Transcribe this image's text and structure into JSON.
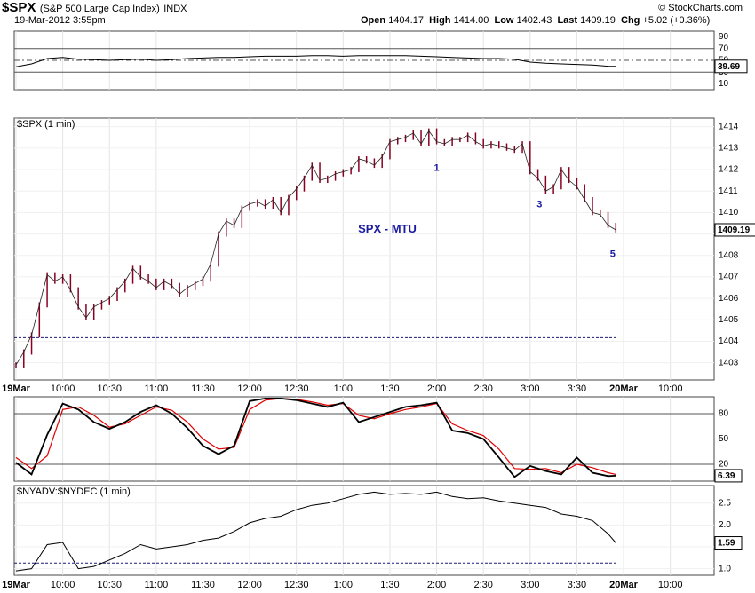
{
  "header": {
    "symbol": "$SPX",
    "description": "(S&P 500 Large Cap Index)",
    "exchange": "INDX",
    "timestamp": "19-Mar-2012 3:55pm",
    "copyright": "© StockCharts.com",
    "open_label": "Open",
    "open_value": "1404.17",
    "high_label": "High",
    "high_value": "1414.00",
    "low_label": "Low",
    "low_value": "1402.43",
    "last_label": "Last",
    "last_value": "1409.19",
    "chg_label": "Chg",
    "chg_value": "+5.02 (+0.36%)"
  },
  "colors": {
    "price_bar": "#880022",
    "wave_label": "#1a1aa0",
    "fast_line": "#000000",
    "slow_line": "#e00000",
    "grid": "#aaaaaa"
  },
  "chart_data": [
    {
      "type": "line",
      "panel": "top indicator",
      "ylim": [
        0,
        100
      ],
      "y_ticks": [
        "90",
        "70",
        "50",
        "30",
        "10"
      ],
      "reference_lines": [
        70,
        50,
        30
      ],
      "last_value_label": "39.69",
      "series": [
        {
          "x": [
            "09:30",
            "09:40",
            "09:50",
            "10:00",
            "10:10",
            "10:20",
            "10:30",
            "10:40",
            "10:50",
            "11:00",
            "11:10",
            "11:20",
            "11:30",
            "11:40",
            "11:50",
            "12:00",
            "12:10",
            "12:20",
            "12:30",
            "12:40",
            "12:50",
            "13:00",
            "13:10",
            "13:20",
            "13:30",
            "13:40",
            "13:50",
            "14:00",
            "14:10",
            "14:20",
            "14:30",
            "14:40",
            "14:50",
            "15:00",
            "15:10",
            "15:20",
            "15:30",
            "15:40",
            "15:50",
            "15:55"
          ],
          "values": [
            39,
            44,
            53,
            55,
            52,
            51,
            50,
            51,
            52,
            50,
            51,
            53,
            54,
            55,
            55,
            56,
            57,
            57,
            57,
            58,
            58,
            57,
            58,
            58,
            58,
            58,
            57,
            56,
            55,
            54,
            53,
            53,
            52,
            47,
            45,
            44,
            43,
            42,
            40,
            39.69
          ]
        }
      ]
    },
    {
      "type": "bar",
      "panel": "price",
      "label": "$SPX (1 min)",
      "annotation": "SPX - MTU",
      "ylim": [
        1402.2,
        1414.4
      ],
      "y_ticks": [
        "1414",
        "1413",
        "1412",
        "1411",
        "1410",
        "1409",
        "1408",
        "1407",
        "1406",
        "1405",
        "1404",
        "1403"
      ],
      "reference_line": 1404.17,
      "last_value_label": "1409.19",
      "x_tick_labels": [
        "19Mar",
        "10:00",
        "10:30",
        "11:00",
        "11:30",
        "12:00",
        "12:30",
        "1:00",
        "1:30",
        "2:00",
        "2:30",
        "3:00",
        "3:30",
        "20Mar",
        "10:00"
      ],
      "wave_labels": [
        {
          "text": "1",
          "x": "14:00",
          "y": 1412.1
        },
        {
          "text": "3",
          "x": "15:06",
          "y": 1410.4
        },
        {
          "text": "5",
          "x": "15:53",
          "y": 1408.1
        }
      ],
      "x": [
        "09:30",
        "09:35",
        "09:40",
        "09:45",
        "09:50",
        "09:55",
        "10:00",
        "10:05",
        "10:10",
        "10:15",
        "10:20",
        "10:25",
        "10:30",
        "10:35",
        "10:40",
        "10:45",
        "10:50",
        "10:55",
        "11:00",
        "11:05",
        "11:10",
        "11:15",
        "11:20",
        "11:25",
        "11:30",
        "11:35",
        "11:40",
        "11:45",
        "11:50",
        "11:55",
        "12:00",
        "12:05",
        "12:10",
        "12:15",
        "12:20",
        "12:25",
        "12:30",
        "12:35",
        "12:40",
        "12:45",
        "12:50",
        "12:55",
        "13:00",
        "13:05",
        "13:10",
        "13:15",
        "13:20",
        "13:25",
        "13:30",
        "13:35",
        "13:40",
        "13:45",
        "13:50",
        "13:55",
        "14:00",
        "14:05",
        "14:10",
        "14:15",
        "14:20",
        "14:25",
        "14:30",
        "14:35",
        "14:40",
        "14:45",
        "14:50",
        "14:55",
        "15:00",
        "15:05",
        "15:10",
        "15:15",
        "15:20",
        "15:25",
        "15:30",
        "15:35",
        "15:40",
        "15:45",
        "15:50",
        "15:55"
      ],
      "values": [
        1402.9,
        1403.5,
        1404.3,
        1405.7,
        1407.1,
        1406.8,
        1407.0,
        1406.4,
        1405.6,
        1405.1,
        1405.6,
        1405.8,
        1406.0,
        1406.4,
        1406.8,
        1407.4,
        1407.0,
        1406.8,
        1406.5,
        1406.8,
        1406.6,
        1406.2,
        1406.5,
        1406.7,
        1406.9,
        1407.6,
        1409.0,
        1409.6,
        1409.4,
        1410.2,
        1410.4,
        1410.5,
        1410.3,
        1410.6,
        1410.0,
        1410.7,
        1411.1,
        1411.6,
        1412.2,
        1411.5,
        1411.6,
        1411.8,
        1411.9,
        1412.0,
        1412.5,
        1412.4,
        1412.2,
        1412.6,
        1413.3,
        1413.4,
        1413.5,
        1413.7,
        1413.2,
        1413.8,
        1413.3,
        1413.2,
        1413.4,
        1413.4,
        1413.6,
        1413.3,
        1413.1,
        1413.2,
        1413.1,
        1413.0,
        1412.9,
        1413.2,
        1411.9,
        1411.6,
        1411.0,
        1411.2,
        1412.0,
        1411.5,
        1411.2,
        1410.6,
        1410.0,
        1409.9,
        1409.4,
        1409.19
      ]
    },
    {
      "type": "line",
      "panel": "stochastic",
      "ylim": [
        0,
        100
      ],
      "y_ticks": [
        "80",
        "50",
        "20"
      ],
      "reference_lines": [
        80,
        50,
        20
      ],
      "last_value_label": "6.39",
      "x": [
        "09:30",
        "09:40",
        "09:50",
        "10:00",
        "10:10",
        "10:20",
        "10:30",
        "10:40",
        "10:50",
        "11:00",
        "11:10",
        "11:20",
        "11:30",
        "11:40",
        "11:50",
        "12:00",
        "12:10",
        "12:20",
        "12:30",
        "12:40",
        "12:50",
        "13:00",
        "13:10",
        "13:20",
        "13:30",
        "13:40",
        "13:50",
        "14:00",
        "14:10",
        "14:20",
        "14:30",
        "14:40",
        "14:50",
        "15:00",
        "15:10",
        "15:20",
        "15:30",
        "15:40",
        "15:50",
        "15:55"
      ],
      "series": [
        {
          "values": [
            22,
            8,
            55,
            92,
            85,
            70,
            62,
            70,
            82,
            90,
            80,
            63,
            42,
            32,
            42,
            95,
            98,
            98,
            96,
            92,
            88,
            93,
            70,
            76,
            82,
            88,
            90,
            93,
            60,
            57,
            50,
            28,
            5,
            18,
            12,
            8,
            28,
            10,
            6,
            6.39
          ]
        },
        {
          "values": [
            28,
            15,
            30,
            85,
            88,
            78,
            64,
            68,
            78,
            88,
            84,
            70,
            50,
            38,
            40,
            85,
            96,
            98,
            97,
            94,
            90,
            92,
            78,
            74,
            80,
            85,
            88,
            92,
            68,
            60,
            54,
            38,
            15,
            14,
            15,
            10,
            20,
            16,
            10,
            8
          ]
        }
      ]
    },
    {
      "type": "line",
      "panel": "breadth",
      "label": "$NYADV:$NYDEC (1 min)",
      "ylim": [
        0.85,
        2.9
      ],
      "y_ticks": [
        "2.5",
        "2.0",
        "1.5",
        "1.0"
      ],
      "reference_line": 1.13,
      "last_value_label": "1.59",
      "x_tick_labels": [
        "19Mar",
        "10:00",
        "10:30",
        "11:00",
        "11:30",
        "12:00",
        "12:30",
        "1:00",
        "1:30",
        "2:00",
        "2:30",
        "3:00",
        "3:30",
        "20Mar",
        "10:00"
      ],
      "series": [
        {
          "x": [
            "09:30",
            "09:40",
            "09:50",
            "10:00",
            "10:10",
            "10:20",
            "10:30",
            "10:40",
            "10:50",
            "11:00",
            "11:10",
            "11:20",
            "11:30",
            "11:40",
            "11:50",
            "12:00",
            "12:10",
            "12:20",
            "12:30",
            "12:40",
            "12:50",
            "13:00",
            "13:10",
            "13:20",
            "13:30",
            "13:40",
            "13:50",
            "14:00",
            "14:10",
            "14:20",
            "14:30",
            "14:40",
            "14:50",
            "15:00",
            "15:10",
            "15:20",
            "15:30",
            "15:40",
            "15:50",
            "15:55"
          ],
          "values": [
            0.95,
            1.0,
            1.55,
            1.6,
            1.0,
            1.05,
            1.2,
            1.35,
            1.55,
            1.45,
            1.5,
            1.55,
            1.65,
            1.7,
            1.85,
            2.05,
            2.15,
            2.2,
            2.35,
            2.45,
            2.5,
            2.6,
            2.7,
            2.75,
            2.7,
            2.72,
            2.7,
            2.75,
            2.65,
            2.6,
            2.62,
            2.55,
            2.5,
            2.45,
            2.4,
            2.25,
            2.2,
            2.1,
            1.8,
            1.59
          ]
        }
      ]
    }
  ]
}
